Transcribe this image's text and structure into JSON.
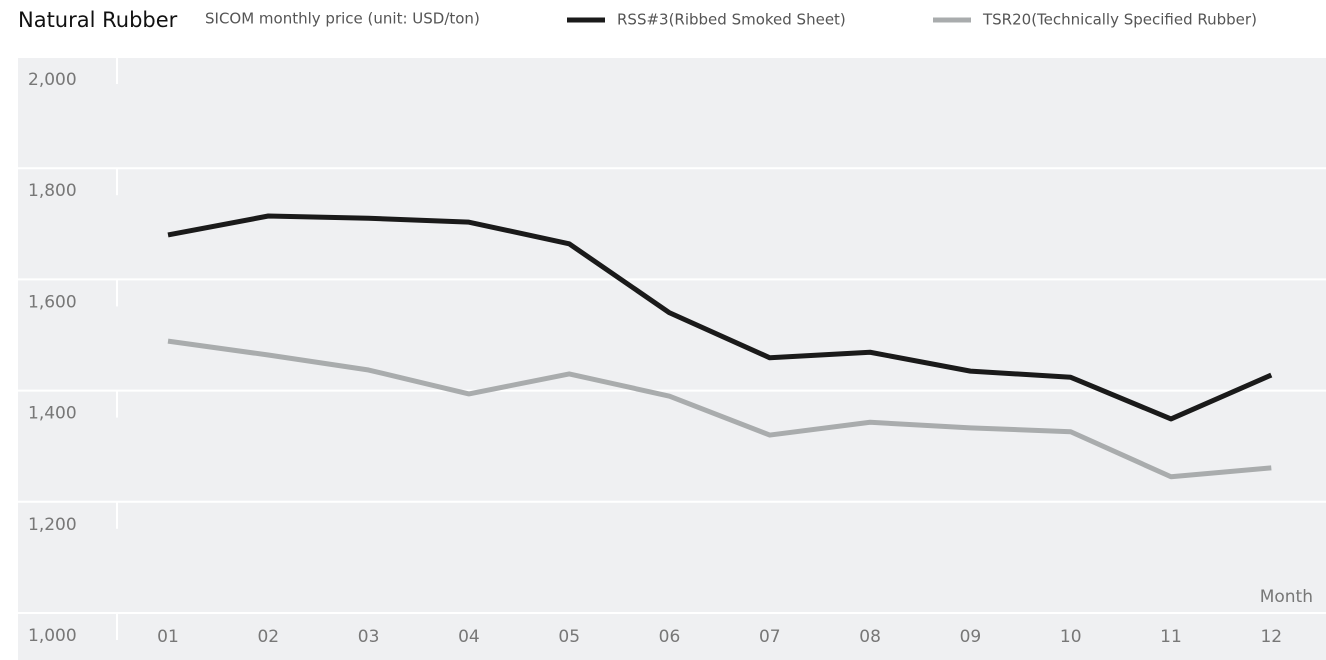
{
  "chart_data": {
    "type": "line",
    "title": "Natural Rubber",
    "subtitle": "SICOM monthly price (unit: USD/ton)",
    "x_label": "Month",
    "categories": [
      "01",
      "02",
      "03",
      "04",
      "05",
      "06",
      "07",
      "08",
      "09",
      "10",
      "11",
      "12"
    ],
    "series": [
      {
        "name": "RSS#3(Ribbed Smoked Sheet)",
        "color": "#1a1a1a",
        "values": [
          1680,
          1714,
          1710,
          1703,
          1664,
          1540,
          1459,
          1469,
          1435,
          1424,
          1349,
          1428
        ]
      },
      {
        "name": "TSR20(Technically Specified Rubber)",
        "color": "#a9acad",
        "values": [
          1489,
          1464,
          1437,
          1394,
          1430,
          1390,
          1320,
          1343,
          1333,
          1326,
          1245,
          1261
        ]
      }
    ],
    "ylim": [
      1000,
      2000
    ],
    "yticks": [
      {
        "value": 1000,
        "label": "1,000"
      },
      {
        "value": 1200,
        "label": "1,200"
      },
      {
        "value": 1400,
        "label": "1,400"
      },
      {
        "value": 1600,
        "label": "1,600"
      },
      {
        "value": 1800,
        "label": "1,800"
      },
      {
        "value": 2000,
        "label": "2,000"
      }
    ],
    "grid": true
  }
}
